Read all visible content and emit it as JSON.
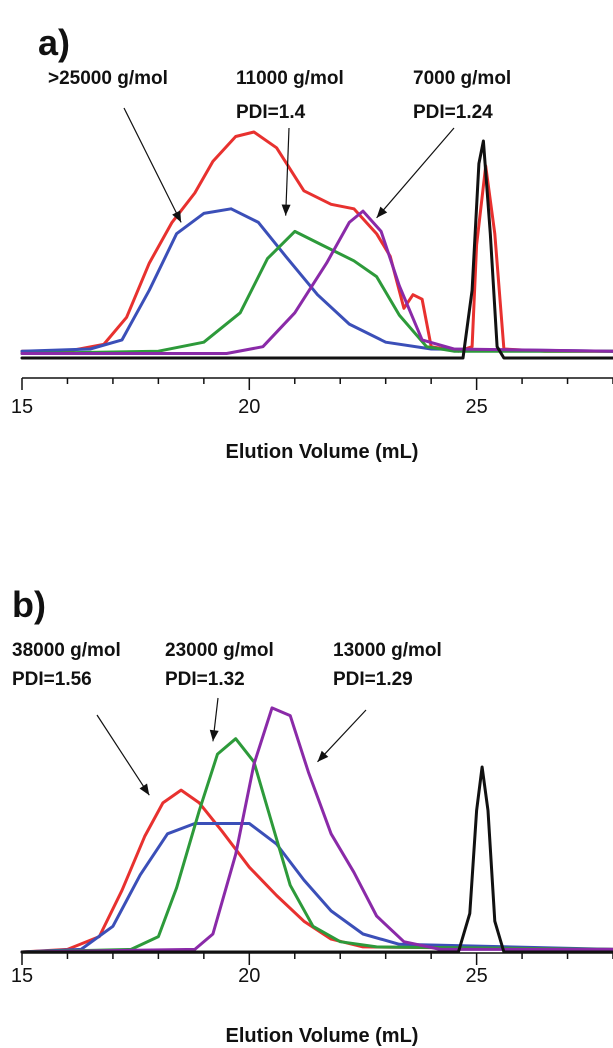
{
  "colors": {
    "red": "#e8312f",
    "blue": "#3b4fb8",
    "green": "#2d9a3a",
    "purple": "#8a2aa8",
    "black": "#111111"
  },
  "chart_data": [
    {
      "type": "line",
      "panel_label": "a)",
      "xlabel": "Elution Volume (mL)",
      "xticks": [
        "15",
        "20",
        "25"
      ],
      "xlim": [
        15,
        28
      ],
      "annotations": [
        {
          "line1": ">25000 g/mol",
          "line2": "",
          "target_x": 18.5,
          "target_y": 0.6
        },
        {
          "line1": "11000 g/mol",
          "line2": "PDI=1.4",
          "target_x": 20.8,
          "target_y": 0.63
        },
        {
          "line1": "7000 g/mol",
          "line2": "PDI=1.24",
          "target_x": 22.8,
          "target_y": 0.62
        }
      ],
      "series": [
        {
          "color": "red",
          "points": [
            [
              15,
              0.03
            ],
            [
              16,
              0.03
            ],
            [
              16.8,
              0.06
            ],
            [
              17.3,
              0.18
            ],
            [
              17.8,
              0.42
            ],
            [
              18.3,
              0.6
            ],
            [
              18.8,
              0.73
            ],
            [
              19.2,
              0.87
            ],
            [
              19.7,
              0.98
            ],
            [
              20.1,
              1.0
            ],
            [
              20.6,
              0.93
            ],
            [
              21.2,
              0.74
            ],
            [
              21.8,
              0.68
            ],
            [
              22.3,
              0.66
            ],
            [
              22.8,
              0.55
            ],
            [
              23.1,
              0.45
            ],
            [
              23.4,
              0.22
            ],
            [
              23.6,
              0.28
            ],
            [
              23.8,
              0.26
            ],
            [
              24.0,
              0.05
            ],
            [
              24.6,
              0.03
            ],
            [
              24.9,
              0.05
            ],
            [
              25.0,
              0.5
            ],
            [
              25.2,
              0.85
            ],
            [
              25.4,
              0.55
            ],
            [
              25.6,
              0.04
            ],
            [
              26.5,
              0.03
            ],
            [
              28,
              0.03
            ]
          ]
        },
        {
          "color": "blue",
          "points": [
            [
              15,
              0.03
            ],
            [
              16.5,
              0.04
            ],
            [
              17.2,
              0.08
            ],
            [
              17.8,
              0.3
            ],
            [
              18.4,
              0.55
            ],
            [
              19.0,
              0.64
            ],
            [
              19.6,
              0.66
            ],
            [
              20.2,
              0.6
            ],
            [
              20.8,
              0.45
            ],
            [
              21.5,
              0.28
            ],
            [
              22.2,
              0.15
            ],
            [
              23.0,
              0.07
            ],
            [
              24.0,
              0.04
            ],
            [
              28,
              0.03
            ]
          ]
        },
        {
          "color": "green",
          "points": [
            [
              15,
              0.02
            ],
            [
              18,
              0.03
            ],
            [
              19.0,
              0.07
            ],
            [
              19.8,
              0.2
            ],
            [
              20.4,
              0.44
            ],
            [
              21.0,
              0.56
            ],
            [
              21.6,
              0.5
            ],
            [
              22.3,
              0.43
            ],
            [
              22.8,
              0.36
            ],
            [
              23.3,
              0.19
            ],
            [
              23.9,
              0.05
            ],
            [
              24.5,
              0.03
            ],
            [
              28,
              0.03
            ]
          ]
        },
        {
          "color": "purple",
          "points": [
            [
              15,
              0.02
            ],
            [
              19.5,
              0.02
            ],
            [
              20.3,
              0.05
            ],
            [
              21.0,
              0.2
            ],
            [
              21.7,
              0.42
            ],
            [
              22.2,
              0.6
            ],
            [
              22.5,
              0.65
            ],
            [
              22.9,
              0.56
            ],
            [
              23.3,
              0.32
            ],
            [
              23.8,
              0.08
            ],
            [
              24.5,
              0.04
            ],
            [
              28,
              0.03
            ]
          ]
        },
        {
          "color": "black",
          "points": [
            [
              15,
              0.0
            ],
            [
              24.7,
              0.0
            ],
            [
              24.9,
              0.3
            ],
            [
              25.05,
              0.86
            ],
            [
              25.15,
              0.96
            ],
            [
              25.3,
              0.55
            ],
            [
              25.45,
              0.05
            ],
            [
              25.6,
              0.0
            ],
            [
              28,
              0.0
            ]
          ]
        }
      ]
    },
    {
      "type": "line",
      "panel_label": "b)",
      "xlabel": "Elution Volume (mL)",
      "xticks": [
        "15",
        "20",
        "25"
      ],
      "xlim": [
        15,
        28
      ],
      "annotations": [
        {
          "line1": "38000 g/mol",
          "line2": "PDI=1.56",
          "target_x": 17.8,
          "target_y": 0.61
        },
        {
          "line1": "23000 g/mol",
          "line2": "PDI=1.32",
          "target_x": 19.2,
          "target_y": 0.82
        },
        {
          "line1": "13000 g/mol",
          "line2": "PDI=1.29",
          "target_x": 21.5,
          "target_y": 0.74
        }
      ],
      "series": [
        {
          "color": "red",
          "points": [
            [
              15,
              0.0
            ],
            [
              16,
              0.01
            ],
            [
              16.7,
              0.06
            ],
            [
              17.2,
              0.24
            ],
            [
              17.7,
              0.45
            ],
            [
              18.1,
              0.58
            ],
            [
              18.5,
              0.63
            ],
            [
              18.9,
              0.58
            ],
            [
              19.4,
              0.47
            ],
            [
              20.0,
              0.33
            ],
            [
              20.6,
              0.22
            ],
            [
              21.2,
              0.12
            ],
            [
              21.8,
              0.05
            ],
            [
              22.5,
              0.02
            ],
            [
              28,
              0.01
            ]
          ]
        },
        {
          "color": "blue",
          "points": [
            [
              15,
              0.0
            ],
            [
              16.3,
              0.01
            ],
            [
              17.0,
              0.1
            ],
            [
              17.6,
              0.3
            ],
            [
              18.2,
              0.46
            ],
            [
              18.8,
              0.5
            ],
            [
              19.4,
              0.5
            ],
            [
              20.0,
              0.5
            ],
            [
              20.6,
              0.42
            ],
            [
              21.2,
              0.28
            ],
            [
              21.8,
              0.16
            ],
            [
              22.5,
              0.07
            ],
            [
              23.3,
              0.03
            ],
            [
              28,
              0.01
            ]
          ]
        },
        {
          "color": "green",
          "points": [
            [
              15,
              0.0
            ],
            [
              17.4,
              0.01
            ],
            [
              18.0,
              0.06
            ],
            [
              18.4,
              0.25
            ],
            [
              18.9,
              0.55
            ],
            [
              19.3,
              0.77
            ],
            [
              19.7,
              0.83
            ],
            [
              20.1,
              0.74
            ],
            [
              20.5,
              0.5
            ],
            [
              20.9,
              0.26
            ],
            [
              21.4,
              0.1
            ],
            [
              22.0,
              0.04
            ],
            [
              22.8,
              0.02
            ],
            [
              28,
              0.01
            ]
          ]
        },
        {
          "color": "purple",
          "points": [
            [
              15,
              0.0
            ],
            [
              18.8,
              0.01
            ],
            [
              19.2,
              0.07
            ],
            [
              19.7,
              0.38
            ],
            [
              20.1,
              0.73
            ],
            [
              20.5,
              0.95
            ],
            [
              20.9,
              0.92
            ],
            [
              21.3,
              0.7
            ],
            [
              21.8,
              0.46
            ],
            [
              22.3,
              0.31
            ],
            [
              22.8,
              0.14
            ],
            [
              23.4,
              0.04
            ],
            [
              24.2,
              0.01
            ],
            [
              28,
              0.01
            ]
          ]
        },
        {
          "color": "black",
          "points": [
            [
              15,
              0.0
            ],
            [
              24.6,
              0.0
            ],
            [
              24.85,
              0.15
            ],
            [
              25.0,
              0.55
            ],
            [
              25.12,
              0.72
            ],
            [
              25.25,
              0.55
            ],
            [
              25.4,
              0.12
            ],
            [
              25.6,
              0.0
            ],
            [
              28,
              0.0
            ]
          ]
        }
      ]
    }
  ]
}
